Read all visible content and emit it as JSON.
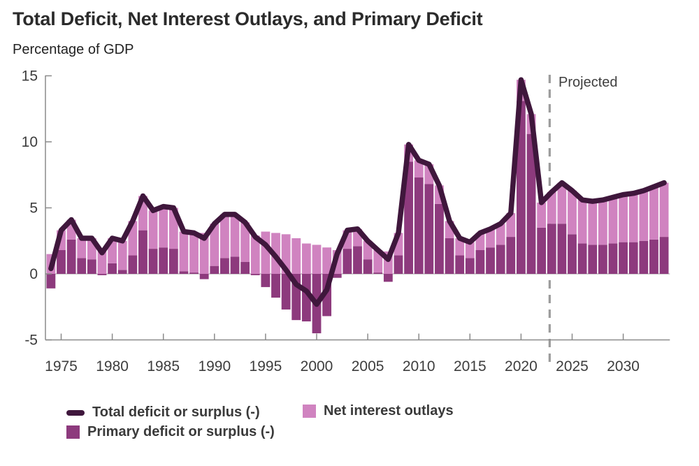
{
  "header": {
    "title": "Total Deficit, Net Interest Outlays, and Primary Deficit",
    "subtitle": "Percentage of GDP"
  },
  "legend": {
    "items": [
      {
        "label": "Total deficit or surplus (-)",
        "swatch": "line",
        "color": "#3f173c"
      },
      {
        "label": "Primary deficit or surplus (-)",
        "swatch": "square",
        "color": "#8d3a7d"
      },
      {
        "label": "Net interest outlays",
        "swatch": "square",
        "color": "#d083c0"
      }
    ]
  },
  "chart_data": {
    "type": "bar",
    "subtype": "stacked-bars-with-total-line",
    "title": "Total Deficit, Net Interest Outlays, and Primary Deficit",
    "ylabel": "Percentage of GDP",
    "xlabel": "",
    "x_start": 1974,
    "x_end": 2034,
    "x_ticks": [
      1975,
      1980,
      1985,
      1990,
      1995,
      2000,
      2005,
      2010,
      2015,
      2020,
      2025,
      2030
    ],
    "ylim": [
      -5,
      15
    ],
    "y_ticks": [
      15,
      10,
      5,
      0,
      -5
    ],
    "grid": "zero-line-only",
    "legend_position": "bottom-left",
    "projected_label": "Projected",
    "projection_start_year": 2024,
    "colors": {
      "net_interest_bar": "#d083c0",
      "primary_deficit_bar": "#8d3a7d",
      "total_line": "#3f173c",
      "axis": "#8a8a8a",
      "zero_line": "#b3b3b3",
      "projection_divider": "#9c9c9c",
      "tick_label": "#3d3d3d"
    },
    "series": [
      {
        "name": "Net interest outlays",
        "role": "net-interest",
        "type": "bar",
        "color": "#d083c0",
        "values": [
          1.5,
          1.5,
          1.5,
          1.5,
          1.6,
          1.7,
          1.9,
          2.2,
          2.6,
          2.6,
          2.9,
          3.1,
          3.1,
          3.0,
          3.0,
          3.1,
          3.2,
          3.3,
          3.2,
          3.0,
          2.9,
          3.2,
          3.1,
          3.0,
          2.7,
          2.3,
          2.2,
          2.0,
          1.8,
          1.4,
          1.3,
          1.4,
          1.7,
          1.7,
          1.7,
          1.3,
          1.3,
          1.5,
          1.4,
          1.3,
          1.3,
          1.2,
          1.3,
          1.4,
          1.6,
          1.8,
          1.6,
          1.5,
          1.9,
          2.4,
          3.1,
          3.3,
          3.3,
          3.3,
          3.4,
          3.5,
          3.6,
          3.7,
          3.8,
          4.0,
          4.1
        ]
      },
      {
        "name": "Primary deficit or surplus (-)",
        "role": "primary-deficit",
        "type": "bar",
        "color": "#8d3a7d",
        "values": [
          -1.1,
          1.8,
          2.6,
          1.2,
          1.1,
          -0.1,
          0.8,
          0.3,
          1.4,
          3.3,
          1.9,
          2.0,
          1.9,
          0.2,
          0.1,
          -0.4,
          0.6,
          1.2,
          1.3,
          0.9,
          -0.1,
          -1.0,
          -1.8,
          -2.7,
          -3.5,
          -3.6,
          -4.5,
          -3.2,
          -0.3,
          1.9,
          2.1,
          1.1,
          0.1,
          -0.6,
          1.4,
          8.5,
          7.3,
          6.8,
          5.3,
          2.7,
          1.4,
          1.2,
          1.8,
          2.0,
          2.2,
          2.8,
          13.1,
          10.6,
          3.5,
          3.8,
          3.8,
          3.0,
          2.3,
          2.2,
          2.2,
          2.3,
          2.4,
          2.4,
          2.5,
          2.6,
          2.8
        ]
      },
      {
        "name": "Total deficit or surplus (-)",
        "role": "total-deficit",
        "type": "line",
        "color": "#3f173c",
        "values": [
          0.4,
          3.3,
          4.1,
          2.7,
          2.7,
          1.6,
          2.7,
          2.5,
          4.0,
          5.9,
          4.8,
          5.1,
          5.0,
          3.2,
          3.1,
          2.7,
          3.8,
          4.5,
          4.5,
          3.9,
          2.8,
          2.2,
          1.3,
          0.3,
          -0.8,
          -1.3,
          -2.3,
          -1.2,
          1.5,
          3.3,
          3.4,
          2.5,
          1.8,
          1.1,
          3.1,
          9.8,
          8.6,
          8.3,
          6.7,
          4.0,
          2.7,
          2.4,
          3.1,
          3.4,
          3.8,
          4.6,
          14.7,
          12.1,
          5.4,
          6.2,
          6.9,
          6.3,
          5.6,
          5.5,
          5.6,
          5.8,
          6.0,
          6.1,
          6.3,
          6.6,
          6.9
        ]
      }
    ]
  }
}
